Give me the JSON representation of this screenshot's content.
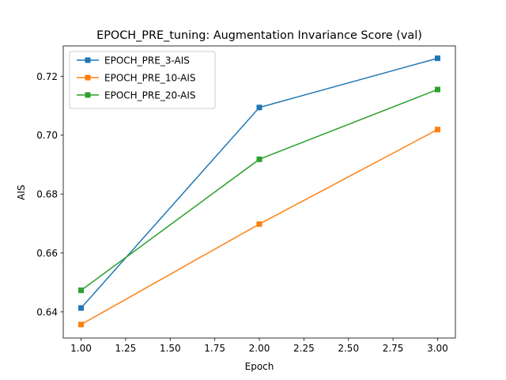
{
  "chart_data": {
    "type": "line",
    "title": "EPOCH_PRE_tuning: Augmentation Invariance Score (val)",
    "xlabel": "Epoch",
    "ylabel": "AIS",
    "x": [
      1.0,
      2.0,
      3.0
    ],
    "xlim": [
      0.9,
      3.1
    ],
    "ylim": [
      0.6311,
      0.7303
    ],
    "xticks": [
      "1.00",
      "1.25",
      "1.50",
      "1.75",
      "2.00",
      "2.25",
      "2.50",
      "2.75",
      "3.00"
    ],
    "yticks": [
      "0.64",
      "0.66",
      "0.68",
      "0.70",
      "0.72"
    ],
    "grid": false,
    "legend_position": "upper-left",
    "marker": "square",
    "series": [
      {
        "name": "EPOCH_PRE_3-AIS",
        "color": "#1f77b4",
        "values": [
          0.6413,
          0.7094,
          0.7261
        ]
      },
      {
        "name": "EPOCH_PRE_10-AIS",
        "color": "#ff7f0e",
        "values": [
          0.6357,
          0.6698,
          0.7019
        ]
      },
      {
        "name": "EPOCH_PRE_20-AIS",
        "color": "#2ca02c",
        "values": [
          0.6473,
          0.6918,
          0.7155
        ]
      }
    ]
  }
}
